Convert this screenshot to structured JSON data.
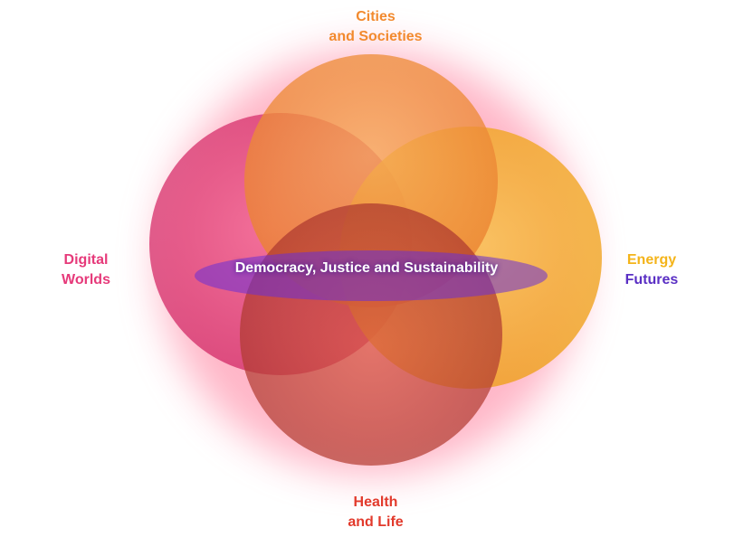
{
  "diagram": {
    "circles": [
      {
        "key": "cities",
        "label_line1": "Cities",
        "label_line2": "and Societies",
        "color": "#f39a3a"
      },
      {
        "key": "digital",
        "label_line1": "Digital",
        "label_line2": "Worlds",
        "color": "#e8437f"
      },
      {
        "key": "energy",
        "label_line1": "Energy",
        "label_line2": "Futures",
        "color": "#f6b21f"
      },
      {
        "key": "health",
        "label_line1": "Health",
        "label_line2": "and Life",
        "color": "#d8402f"
      }
    ],
    "center_label": "Democracy, Justice and Sustainability",
    "colors": {
      "cities": "#f28a2e",
      "digital": "#e63a7a",
      "energy": "#f4b41a",
      "energy_line2": "#5a2fc4",
      "health": "#e23a2c",
      "glow": "#ff6f91"
    }
  }
}
